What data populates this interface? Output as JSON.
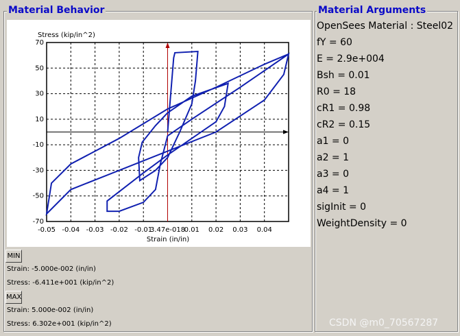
{
  "left_panel": {
    "title": "Material Behavior"
  },
  "chart_data": {
    "type": "line",
    "xlabel": "Strain (in/in)",
    "ylabel": "Stress (kip/in^2)",
    "x": [
      0,
      0.0025,
      0.003,
      0.0125,
      0.0115,
      0.01,
      0.005,
      0,
      -0.005,
      -0.0115,
      -0.012,
      -0.0105,
      -0.005,
      0,
      0.01,
      0.025,
      0.0235,
      0.02,
      0.01,
      0,
      -0.01,
      -0.025,
      -0.025,
      -0.02,
      -0.01,
      -0.005,
      -0.003,
      0,
      0.01,
      0.03,
      0.05,
      0.048,
      0.04,
      0.02,
      0,
      -0.02,
      -0.04,
      -0.05,
      -0.048,
      -0.04,
      -0.02,
      0,
      0.02,
      0.04,
      0.05
    ],
    "values": [
      0,
      58,
      62,
      63,
      40,
      22,
      0,
      -20,
      -30,
      -38,
      -20,
      -8,
      5,
      15,
      28,
      38,
      20,
      8,
      -5,
      -18,
      -32,
      -54,
      -62,
      -62,
      -55,
      -45,
      -25,
      -3,
      10,
      35,
      61,
      45,
      25,
      0,
      -15,
      -30,
      -45,
      -64,
      -40,
      -25,
      -5,
      18,
      35,
      53,
      61
    ],
    "color": "#1020b0",
    "xlim": [
      -0.05,
      0.05
    ],
    "ylim": [
      -70,
      70
    ],
    "xticks": [
      -0.05,
      -0.04,
      -0.03,
      -0.02,
      -0.01,
      {
        "value": 3.47e-18,
        "label": "3.47e-018"
      },
      0.01,
      0.02,
      0.03,
      0.04
    ],
    "yticks": [
      70,
      50,
      30,
      10,
      -10,
      -30,
      -50,
      -70
    ],
    "grid": true
  },
  "min": {
    "button": "MIN",
    "strain": "Strain: -5.000e-002 (in/in)",
    "stress": "Stress: -6.411e+001 (kip/in^2)"
  },
  "max": {
    "button": "MAX",
    "strain": "Strain: 5.000e-002 (in/in)",
    "stress": "Stress: 6.302e+001 (kip/in^2)"
  },
  "right_panel": {
    "title": "Material Arguments",
    "args": [
      "OpenSees Material : Steel02",
      "fY = 60",
      "E = 2.9e+004",
      "Bsh = 0.01",
      "R0 = 18",
      "cR1 = 0.98",
      "cR2 = 0.15",
      "a1 = 0",
      "a2 = 1",
      "a3 = 0",
      "a4 = 1",
      "sigInit = 0",
      "WeightDensity = 0"
    ]
  },
  "watermark": "CSDN @m0_70567287"
}
